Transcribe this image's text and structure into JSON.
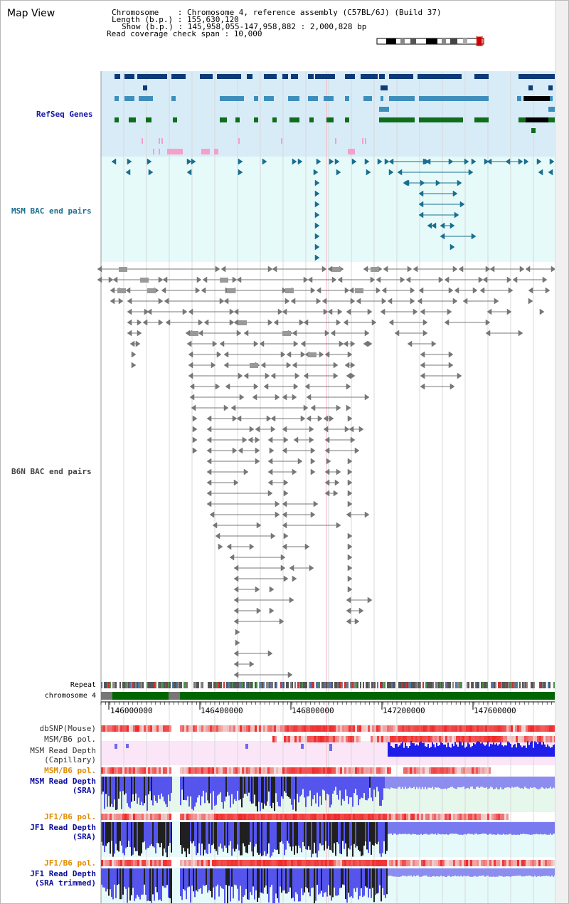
{
  "view_title": "Map View",
  "header": {
    "chromosome_line": "Chromosome    : Chromosome 4, reference assembly (C57BL/6J) (Build 37)",
    "length_line": "Length (b.p.) : 155,630,120",
    "show_line": "Show (b.p.) : 145,958,055-147,958,882 : 2,000,828 bp",
    "coverage_line": "Read coverage check span : 10,000"
  },
  "tracks": {
    "refseq": "RefSeq Genes",
    "msm_bac": "MSM BAC end pairs",
    "b6n_bac": "B6N BAC end pairs",
    "repeat": "Repeat",
    "chromosome": "chromosome 4",
    "dbsnp": "dbSNP(Mouse)",
    "msm_b6_pol_1": "MSM/B6 pol.",
    "msm_read_depth_cap_1": "MSM Read Depth",
    "msm_read_depth_cap_2": "(Capillary)",
    "msm_b6_pol_2": "MSM/B6 pol.",
    "msm_read_depth_sra_1": "MSM Read Depth",
    "msm_read_depth_sra_2": "(SRA)",
    "jf1_b6_pol_1": "JF1/B6 pol.",
    "jf1_read_depth_sra_1": "JF1 Read Depth",
    "jf1_read_depth_sra_2": "(SRA)",
    "jf1_b6_pol_2": "JF1/B6 pol.",
    "jf1_read_depth_trim_1": "JF1 Read Depth",
    "jf1_read_depth_trim_2": "(SRA trimmed)"
  },
  "axis": {
    "ticks": [
      "146000000",
      "146400000",
      "146800000",
      "147200000",
      "147600000"
    ]
  },
  "colors": {
    "refseq_bg": "#d8ecf8",
    "bac_bg": "#e6fafa",
    "gene_navy": "#0e3a78",
    "gene_teal": "#3e8ebc",
    "gene_green": "#0f6d1b",
    "chromosome_green": "#006600",
    "depth_blue": "#1e1ee8",
    "pol_red": "#e83030"
  }
}
